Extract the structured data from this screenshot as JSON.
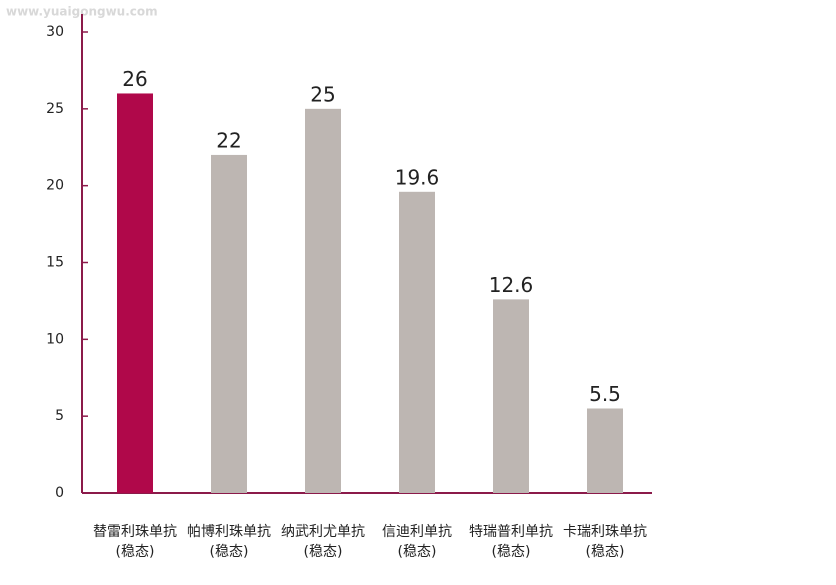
{
  "chart_data": {
    "type": "bar",
    "watermark": "www.yuaigongwu.com",
    "categories": [
      "替雷利珠单抗\n(稳态)",
      "帕博利珠单抗\n(稳态)",
      "纳武利尤单抗\n(稳态)",
      "信迪利单抗\n(稳态)",
      "特瑞普利单抗\n(稳态)",
      "卡瑞利珠单抗\n(稳态)"
    ],
    "values": [
      26,
      22,
      25,
      19.6,
      12.6,
      5.5
    ],
    "colors": [
      "#b0084a",
      "#bdb6b2",
      "#bdb6b2",
      "#bdb6b2",
      "#bdb6b2",
      "#bdb6b2"
    ],
    "axis_color": "#8b1a4a",
    "ylim": [
      0,
      30
    ],
    "yticks": [
      0,
      5,
      10,
      15,
      20,
      25,
      30
    ]
  }
}
